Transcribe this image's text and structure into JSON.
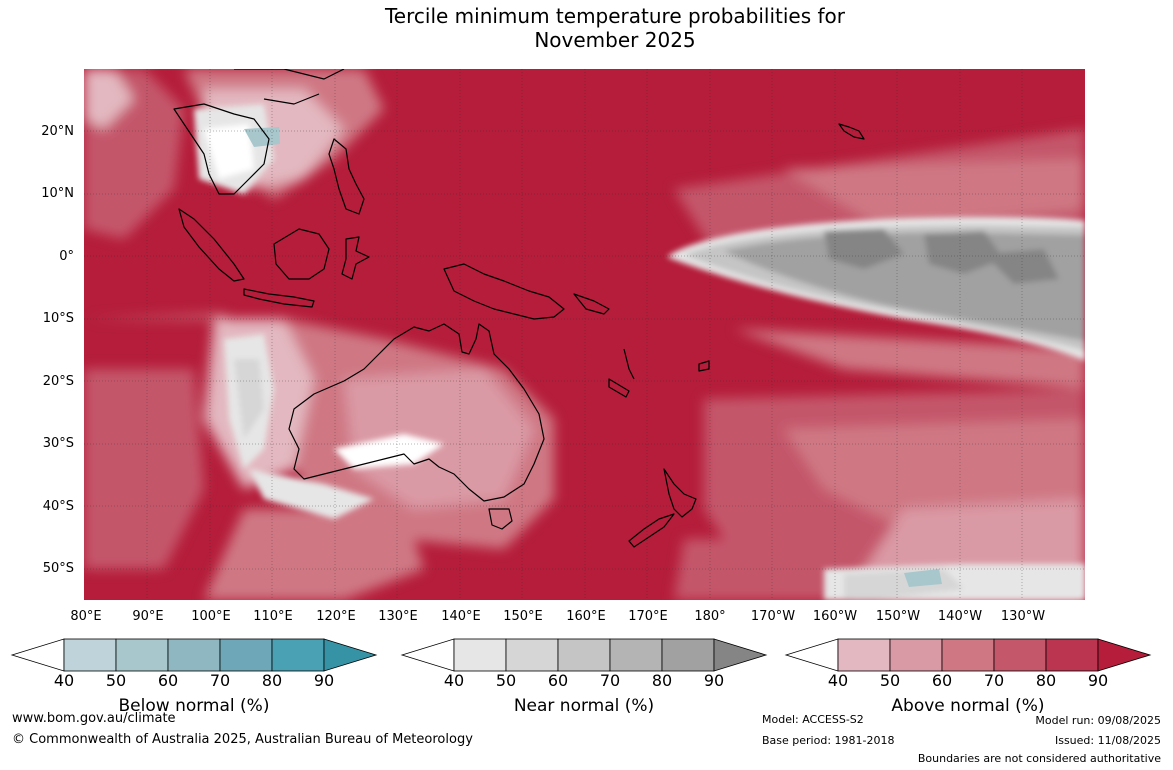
{
  "title_line1": "Tercile minimum temperature probabilities for",
  "title_line2": "November 2025",
  "lat_labels": [
    "20°N",
    "10°N",
    "0°",
    "10°S",
    "20°S",
    "30°S",
    "40°S",
    "50°S"
  ],
  "lon_labels": [
    "80°E",
    "90°E",
    "100°E",
    "110°E",
    "120°E",
    "130°E",
    "140°E",
    "150°E",
    "160°E",
    "170°E",
    "180°",
    "170°W",
    "160°W",
    "150°W",
    "140°W",
    "130°W"
  ],
  "colorbars": {
    "below": {
      "title": "Below normal (%)",
      "ticks": [
        "40",
        "50",
        "60",
        "70",
        "80",
        "90"
      ],
      "colors": [
        "#bed4da",
        "#a7c7cc",
        "#8fb7c2",
        "#6ea8b8",
        "#49a1b3",
        "#3693a6"
      ]
    },
    "near": {
      "title": "Near normal (%)",
      "ticks": [
        "40",
        "50",
        "60",
        "70",
        "80",
        "90"
      ],
      "colors": [
        "#e6e6e6",
        "#d6d6d6",
        "#c5c5c5",
        "#b4b4b4",
        "#a1a1a1",
        "#858585"
      ]
    },
    "above": {
      "title": "Above normal (%)",
      "ticks": [
        "40",
        "50",
        "60",
        "70",
        "80",
        "90"
      ],
      "colors": [
        "#e3b8c0",
        "#da9aa5",
        "#cf7884",
        "#c4576a",
        "#bb3450",
        "#b51d3a"
      ]
    }
  },
  "footer": {
    "url": "www.bom.gov.au/climate",
    "copyright": "© Commonwealth of Australia 2025, Australian Bureau of Meteorology",
    "model": "Model: ACCESS-S2",
    "base_period": "Base period: 1981-2018",
    "model_run": "Model run: 09/08/2025",
    "issued": "Issued: 11/08/2025",
    "disclaimer": "Boundaries are not considered authoritative"
  }
}
